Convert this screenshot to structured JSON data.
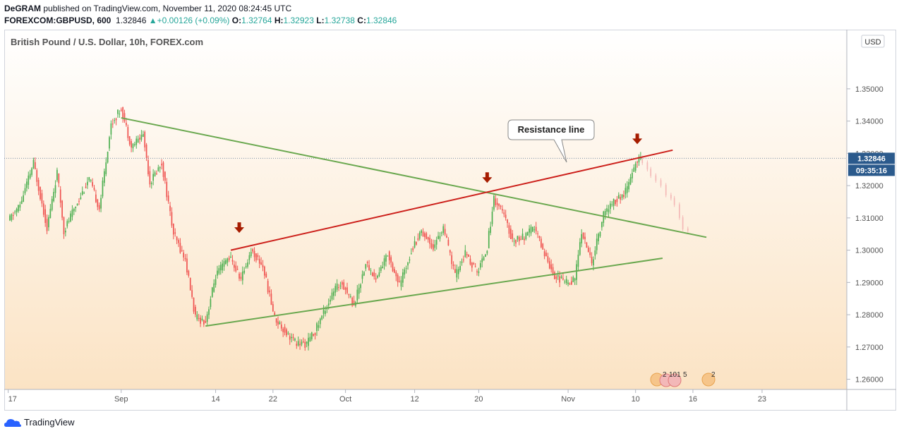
{
  "header": {
    "author": "DeGRAM",
    "published_text": "published on TradingView.com, November 11, 2020 08:24:45 UTC",
    "symbol": "FOREXCOM:GBPUSD, 600",
    "last_price": "1.32846",
    "change": "+0.00126 (+0.09%)",
    "open_label": "O:",
    "open": "1.32764",
    "high_label": "H:",
    "high": "1.32923",
    "low_label": "L:",
    "low": "1.32738",
    "close_label": "C:",
    "close": "1.32846"
  },
  "footer": {
    "brand": "TradingView"
  },
  "chart_data": {
    "type": "candlestick",
    "title": "British Pound / U.S. Dollar, 10h, FOREX.com",
    "currency_label": "USD",
    "price_tag": "1.32846",
    "countdown_tag": "09:35:16",
    "current_price": 1.32846,
    "annotation": "Resistance line",
    "ylim": [
      1.2575,
      1.3585
    ],
    "y_ticks": [
      "1.35000",
      "1.34000",
      "1.33000",
      "1.32000",
      "1.31000",
      "1.30000",
      "1.29000",
      "1.28000",
      "1.27000",
      "1.26000"
    ],
    "x_ticks": [
      "17",
      "Sep",
      "14",
      "22",
      "Oct",
      "12",
      "20",
      "Nov",
      "10",
      "16",
      "23"
    ],
    "colors": {
      "up": "#4caf50",
      "down": "#ef5350",
      "projection": "#f4b9b7",
      "support": "#6aa84f",
      "resistance": "#cc1f1a",
      "arrow": "#a61c00"
    },
    "control_points": [
      [
        -1,
        1.309
      ],
      [
        6,
        1.314
      ],
      [
        14,
        1.327
      ],
      [
        22,
        1.307
      ],
      [
        28,
        1.324
      ],
      [
        32,
        1.306
      ],
      [
        40,
        1.315
      ],
      [
        47,
        1.322
      ],
      [
        53,
        1.313
      ],
      [
        60,
        1.339
      ],
      [
        66,
        1.344
      ],
      [
        72,
        1.332
      ],
      [
        79,
        1.336
      ],
      [
        83,
        1.321
      ],
      [
        90,
        1.327
      ],
      [
        97,
        1.305
      ],
      [
        104,
        1.297
      ],
      [
        110,
        1.279
      ],
      [
        116,
        1.278
      ],
      [
        122,
        1.292
      ],
      [
        130,
        1.298
      ],
      [
        137,
        1.291
      ],
      [
        143,
        1.3
      ],
      [
        150,
        1.295
      ],
      [
        157,
        1.279
      ],
      [
        163,
        1.275
      ],
      [
        170,
        1.271
      ],
      [
        176,
        1.271
      ],
      [
        181,
        1.275
      ],
      [
        187,
        1.282
      ],
      [
        193,
        1.288
      ],
      [
        197,
        1.29
      ],
      [
        204,
        1.283
      ],
      [
        211,
        1.296
      ],
      [
        217,
        1.291
      ],
      [
        224,
        1.299
      ],
      [
        231,
        1.289
      ],
      [
        238,
        1.3
      ],
      [
        244,
        1.306
      ],
      [
        251,
        1.301
      ],
      [
        257,
        1.307
      ],
      [
        264,
        1.292
      ],
      [
        270,
        1.299
      ],
      [
        277,
        1.293
      ],
      [
        283,
        1.301
      ],
      [
        287,
        1.316
      ],
      [
        292,
        1.312
      ],
      [
        298,
        1.303
      ],
      [
        305,
        1.304
      ],
      [
        311,
        1.307
      ],
      [
        317,
        1.299
      ],
      [
        323,
        1.292
      ],
      [
        330,
        1.29
      ],
      [
        335,
        1.291
      ],
      [
        339,
        1.306
      ],
      [
        345,
        1.296
      ],
      [
        352,
        1.311
      ],
      [
        358,
        1.315
      ],
      [
        364,
        1.317
      ],
      [
        368,
        1.322
      ],
      [
        371,
        1.327
      ],
      [
        374,
        1.3285
      ]
    ],
    "seed": 11,
    "projection": [
      [
        375,
        1.327
      ],
      [
        378,
        1.325
      ],
      [
        380,
        1.323
      ],
      [
        383,
        1.3215
      ],
      [
        386,
        1.32
      ],
      [
        389,
        1.317
      ],
      [
        392,
        1.316
      ],
      [
        394,
        1.314
      ],
      [
        397,
        1.31
      ],
      [
        399,
        1.3065
      ],
      [
        402,
        1.306
      ]
    ],
    "lines": [
      {
        "name": "descending",
        "from": [
          66,
          1.341
        ],
        "to": [
          413,
          1.304
        ],
        "color": "support",
        "width": 2
      },
      {
        "name": "rising-support",
        "from": [
          116,
          1.2765
        ],
        "to": [
          387,
          1.2975
        ],
        "color": "support",
        "width": 2
      },
      {
        "name": "resistance",
        "from": [
          131,
          1.3
        ],
        "to": [
          393,
          1.331
        ],
        "color": "resistance",
        "width": 2
      }
    ],
    "arrows": [
      [
        136,
        1.306
      ],
      [
        283,
        1.3215
      ],
      [
        372,
        1.3335
      ]
    ],
    "x_tick_index": {
      "17": -1,
      "Sep": 66,
      "14": 122,
      "22": 156,
      "Oct": 199,
      "12": 240,
      "20": 278,
      "Nov": 331,
      "10": 371,
      "16": 405,
      "23": 446
    }
  }
}
